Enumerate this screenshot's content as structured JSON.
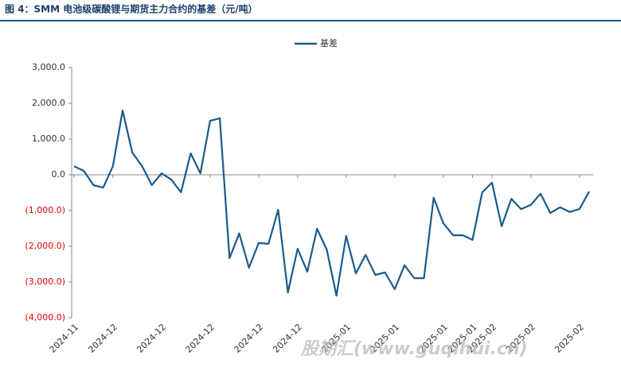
{
  "chart_data": {
    "type": "line",
    "title": "图 4：SMM 电池级碳酸锂与期货主力合约的基差（元/吨）",
    "watermark": "股期汇(www.guqihui.cn)",
    "categories": [
      "2024-11",
      null,
      null,
      null,
      "2024-12",
      null,
      null,
      null,
      null,
      "2024-12",
      null,
      null,
      null,
      null,
      "2024-12",
      null,
      null,
      null,
      null,
      "2024-12",
      null,
      null,
      null,
      "2024-12",
      null,
      null,
      null,
      null,
      "2025-01",
      null,
      null,
      null,
      null,
      "2025-01",
      null,
      null,
      null,
      null,
      "2025-01",
      null,
      null,
      "2025-01",
      null,
      "2025-02",
      null,
      null,
      null,
      "2025-02",
      null,
      null,
      null,
      null,
      "2025-02",
      null
    ],
    "series": [
      {
        "name": "基差",
        "color": "#1b5a8a",
        "values": [
          240,
          110,
          -290,
          -360,
          240,
          1800,
          620,
          240,
          -290,
          40,
          -130,
          -490,
          600,
          40,
          1510,
          1580,
          -2330,
          -1640,
          -2600,
          -1910,
          -1930,
          -980,
          -3290,
          -2070,
          -2710,
          -1510,
          -2090,
          -3380,
          -1710,
          -2760,
          -2240,
          -2800,
          -2730,
          -3200,
          -2530,
          -2890,
          -2890,
          -640,
          -1360,
          -1690,
          -1690,
          -1820,
          -490,
          -220,
          -1440,
          -670,
          -960,
          -840,
          -530,
          -1070,
          -910,
          -1040,
          -960,
          -470
        ]
      }
    ],
    "ylim": [
      -4000,
      3000
    ],
    "yticks": [
      {
        "value": -4000,
        "label": "(4,000.0)"
      },
      {
        "value": -3000,
        "label": "(3,000.0)"
      },
      {
        "value": -2000,
        "label": "(2,000.0)"
      },
      {
        "value": -1000,
        "label": "(1,000.0)"
      },
      {
        "value": 0,
        "label": "0.0"
      },
      {
        "value": 1000,
        "label": "1,000.0"
      },
      {
        "value": 2000,
        "label": "2,000.0"
      },
      {
        "value": 3000,
        "label": "3,000.0"
      }
    ],
    "negative_label_color": "#e00000",
    "legend": "top"
  }
}
